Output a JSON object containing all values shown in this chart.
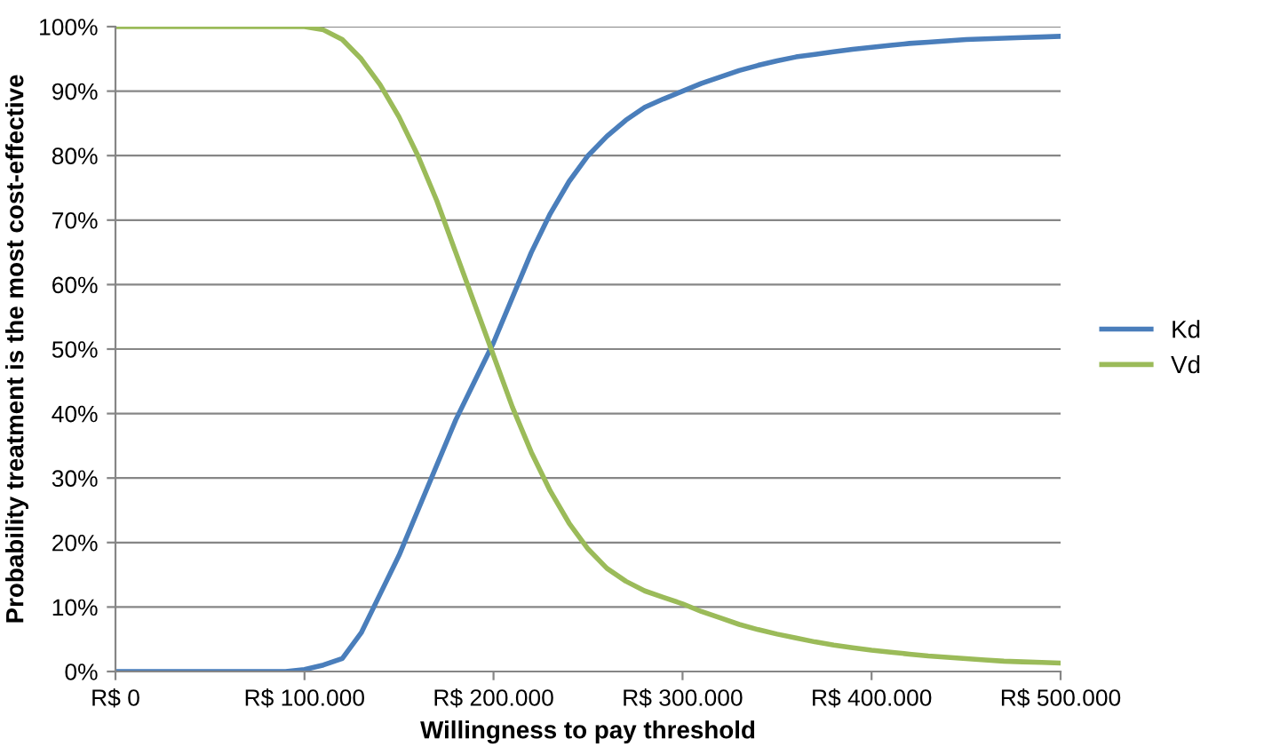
{
  "chart_data": {
    "type": "line",
    "xlabel": "Willingness to pay threshold",
    "ylabel": "Probability treatment is the most cost-effective",
    "categories": [
      "R$ 0",
      null,
      null,
      null,
      null,
      null,
      null,
      null,
      null,
      null,
      "R$ 100.000",
      null,
      null,
      null,
      null,
      null,
      null,
      null,
      null,
      null,
      "R$ 200.000",
      null,
      null,
      null,
      null,
      null,
      null,
      null,
      null,
      null,
      "R$ 300.000",
      null,
      null,
      null,
      null,
      null,
      null,
      null,
      null,
      null,
      "R$ 400.000",
      null,
      null,
      null,
      null,
      null,
      null,
      null,
      null,
      null,
      "R$ 500.000"
    ],
    "series": [
      {
        "name": "Kd",
        "color": "#4a7ebb",
        "values": [
          0,
          0,
          0,
          0,
          0,
          0,
          0,
          0,
          0,
          0,
          0.3,
          1,
          2,
          6,
          12,
          18,
          25,
          32,
          39,
          45,
          51,
          58,
          65,
          71,
          76,
          80,
          83,
          85.5,
          87.5,
          88.8,
          90,
          91.2,
          92.2,
          93.2,
          94,
          94.7,
          95.3,
          95.7,
          96.1,
          96.5,
          96.8,
          97.1,
          97.4,
          97.6,
          97.8,
          98,
          98.1,
          98.2,
          98.3,
          98.4,
          98.5
        ]
      },
      {
        "name": "Vd",
        "color": "#9bbb59",
        "values": [
          100,
          100,
          100,
          100,
          100,
          100,
          100,
          100,
          100,
          100,
          100,
          99.5,
          98,
          95,
          91,
          86,
          80,
          73,
          65,
          57,
          49,
          41,
          34,
          28,
          23,
          19,
          16,
          14,
          12.5,
          11.5,
          10.5,
          9.3,
          8.3,
          7.3,
          6.5,
          5.8,
          5.2,
          4.6,
          4.1,
          3.7,
          3.3,
          3.0,
          2.7,
          2.4,
          2.2,
          2.0,
          1.8,
          1.6,
          1.5,
          1.4,
          1.3
        ]
      }
    ],
    "ylim": [
      0,
      100
    ],
    "yticks": [
      {
        "value": 0,
        "label": "0%"
      },
      {
        "value": 10,
        "label": "10%"
      },
      {
        "value": 20,
        "label": "20%"
      },
      {
        "value": 30,
        "label": "30%"
      },
      {
        "value": 40,
        "label": "40%"
      },
      {
        "value": 50,
        "label": "50%"
      },
      {
        "value": 60,
        "label": "60%"
      },
      {
        "value": 70,
        "label": "70%"
      },
      {
        "value": 80,
        "label": "80%"
      },
      {
        "value": 90,
        "label": "90%"
      },
      {
        "value": 100,
        "label": "100%"
      }
    ],
    "grid": "y",
    "legend": "right",
    "marker": "none",
    "line_style": "solid"
  }
}
